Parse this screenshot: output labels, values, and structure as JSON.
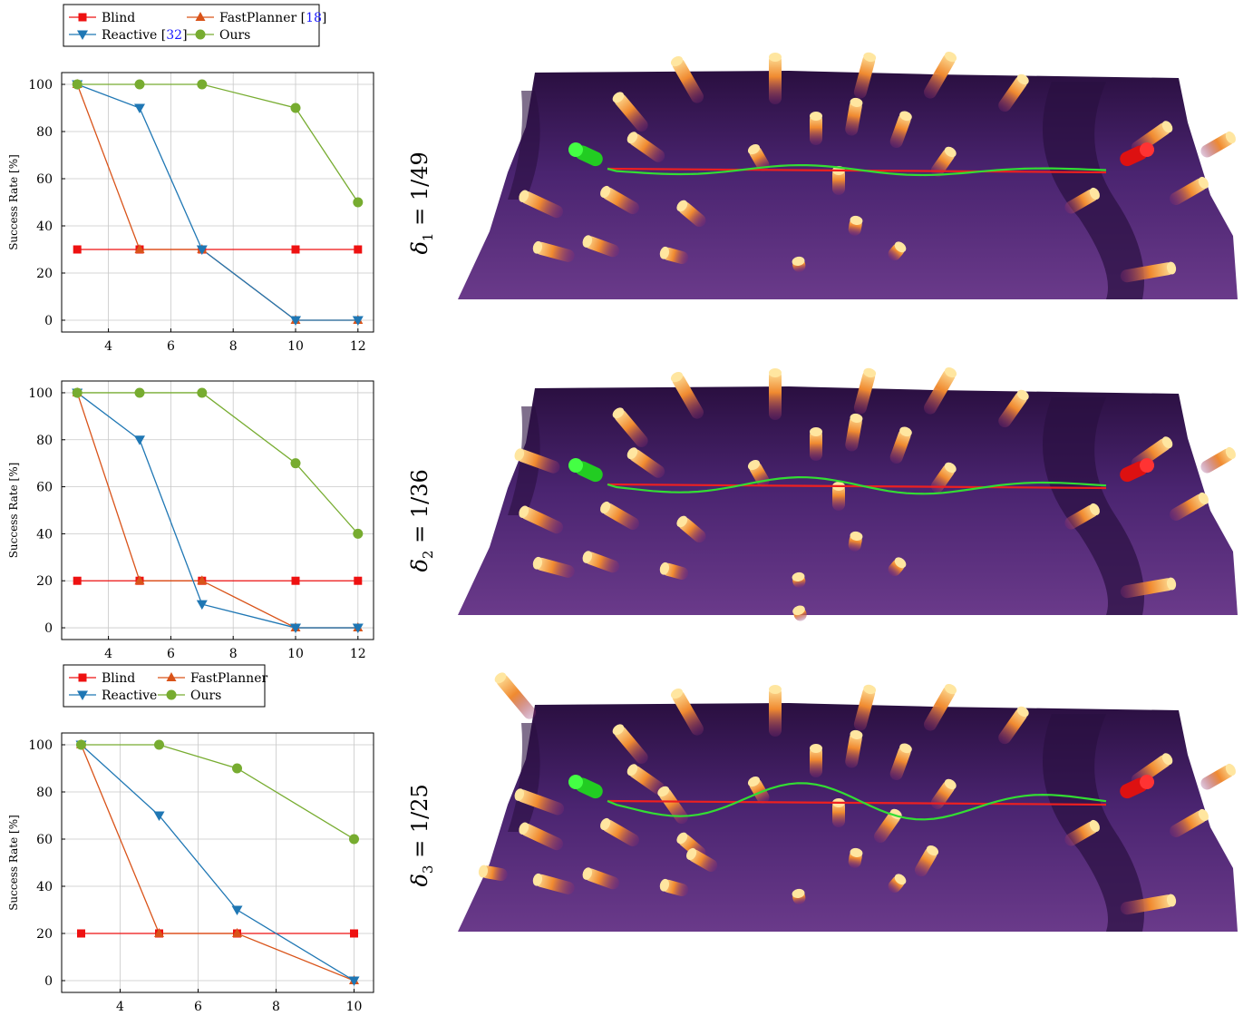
{
  "colors": {
    "Blind": "#ee1111",
    "FastPlanner": "#d95319",
    "Reactive": "#1f77b4",
    "Ours": "#77ac30",
    "grid": "#c8c8c8",
    "terrain_dark": "#2a0f40",
    "terrain": "#4a2470",
    "terrain_light": "#6a3a8a",
    "pillar_glow": "#ffe6a0",
    "pillar_hot": "#f08a30",
    "pillar_base": "#8a2a70",
    "path_planned": "#ee2020",
    "path_actual": "#33dd33",
    "start_marker": "#22cc22",
    "goal_marker": "#dd1111"
  },
  "legends": [
    {
      "items": [
        "Blind",
        "FastPlanner [18]",
        "Reactive [32]",
        "Ours"
      ],
      "ref_color": "#1a1aff"
    },
    {
      "items": [
        "Blind",
        "FastPlanner",
        "Reactive",
        "Ours"
      ]
    }
  ],
  "chart_data": [
    {
      "type": "line",
      "ylabel": "Success Rate [%]",
      "xlabel": "",
      "x": [
        3,
        5,
        7,
        10,
        12
      ],
      "xticks": [
        4,
        6,
        8,
        10,
        12
      ],
      "yticks": [
        0,
        20,
        40,
        60,
        80,
        100
      ],
      "xlim": [
        2.5,
        12.5
      ],
      "ylim": [
        -5,
        105
      ],
      "grid": true,
      "legend": "above",
      "series": [
        {
          "name": "Blind",
          "marker": "square",
          "values": [
            30,
            30,
            30,
            30,
            30
          ]
        },
        {
          "name": "FastPlanner",
          "marker": "triangle-up",
          "values": [
            100,
            30,
            30,
            0,
            0
          ]
        },
        {
          "name": "Reactive",
          "marker": "triangle-down",
          "values": [
            100,
            90,
            30,
            0,
            0
          ]
        },
        {
          "name": "Ours",
          "marker": "circle",
          "values": [
            100,
            100,
            100,
            90,
            50
          ]
        }
      ]
    },
    {
      "type": "line",
      "ylabel": "Success Rate [%]",
      "xlabel": "",
      "x": [
        3,
        5,
        7,
        10,
        12
      ],
      "xticks": [
        4,
        6,
        8,
        10,
        12
      ],
      "yticks": [
        0,
        20,
        40,
        60,
        80,
        100
      ],
      "xlim": [
        2.5,
        12.5
      ],
      "ylim": [
        -5,
        105
      ],
      "grid": true,
      "series": [
        {
          "name": "Blind",
          "marker": "square",
          "values": [
            20,
            20,
            20,
            20,
            20
          ]
        },
        {
          "name": "FastPlanner",
          "marker": "triangle-up",
          "values": [
            100,
            20,
            20,
            0,
            0
          ]
        },
        {
          "name": "Reactive",
          "marker": "triangle-down",
          "values": [
            100,
            80,
            10,
            0,
            0
          ]
        },
        {
          "name": "Ours",
          "marker": "circle",
          "values": [
            100,
            100,
            100,
            70,
            40
          ]
        }
      ]
    },
    {
      "type": "line",
      "ylabel": "Success Rate [%]",
      "xlabel": "",
      "x": [
        3,
        5,
        7,
        10
      ],
      "xticks": [
        4,
        6,
        8,
        10
      ],
      "yticks": [
        0,
        20,
        40,
        60,
        80,
        100
      ],
      "xlim": [
        2.5,
        10.5
      ],
      "ylim": [
        -5,
        105
      ],
      "grid": true,
      "legend": "above",
      "series": [
        {
          "name": "Blind",
          "marker": "square",
          "values": [
            20,
            20,
            20,
            20
          ]
        },
        {
          "name": "FastPlanner",
          "marker": "triangle-up",
          "values": [
            100,
            20,
            20,
            0
          ]
        },
        {
          "name": "Reactive",
          "marker": "triangle-down",
          "values": [
            100,
            70,
            30,
            0
          ]
        },
        {
          "name": "Ours",
          "marker": "circle",
          "values": [
            100,
            100,
            90,
            60
          ]
        }
      ]
    }
  ],
  "scenes": [
    {
      "label": "δ1 = 1/49",
      "symbol": "δ",
      "index": "1",
      "value": "= 1/49"
    },
    {
      "label": "δ2 = 1/36",
      "symbol": "δ",
      "index": "2",
      "value": "= 1/36"
    },
    {
      "label": "δ3 = 1/25",
      "symbol": "δ",
      "index": "3",
      "value": "= 1/25"
    }
  ]
}
